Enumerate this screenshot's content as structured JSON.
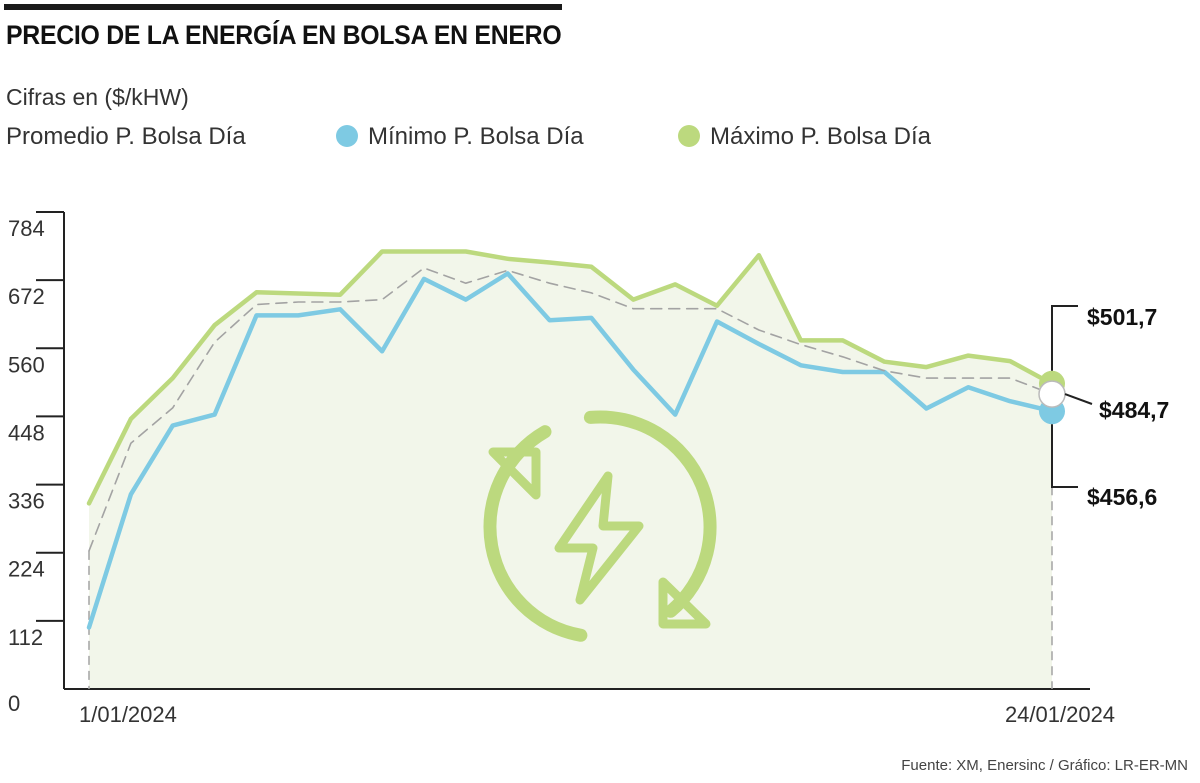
{
  "header": {
    "title": "PRECIO DE LA ENERGÍA EN BOLSA EN ENERO",
    "subtitle": "Cifras en ($/kHW)"
  },
  "legend": {
    "promedio": "Promedio P. Bolsa Día",
    "minimo": "Mínimo P. Bolsa Día",
    "maximo": "Máximo P. Bolsa Día"
  },
  "footer": {
    "source": "Fuente: XM, Enersinc / Gráfico: LR-ER-MN"
  },
  "colors": {
    "maximo": "#bcd97e",
    "minimo": "#7ecae3",
    "promedio": "#a3a3a3",
    "fill": "#f2f6ea",
    "axis": "#222222",
    "icon": "#bcd97e"
  },
  "decoration": {
    "icon": "energy-cycle-icon"
  },
  "chart_data": {
    "type": "line",
    "x_start_label": "1/01/2024",
    "x_end_label": "24/01/2024",
    "x": [
      1,
      2,
      3,
      4,
      5,
      6,
      7,
      8,
      9,
      10,
      11,
      12,
      13,
      14,
      15,
      16,
      17,
      18,
      19,
      20,
      21,
      22,
      23,
      24
    ],
    "ylim": [
      0,
      784
    ],
    "yticks": [
      0,
      112,
      224,
      336,
      448,
      560,
      672,
      784
    ],
    "series": [
      {
        "name": "Promedio P. Bolsa Día",
        "key": "promedio",
        "style": "dashed",
        "values": [
          227,
          404,
          462,
          570,
          632,
          636,
          636,
          640,
          692,
          667,
          688,
          667,
          651,
          625,
          625,
          625,
          590,
          566,
          546,
          523,
          511,
          511,
          511,
          484.7
        ]
      },
      {
        "name": "Mínimo P. Bolsa Día",
        "key": "minimo",
        "style": "solid",
        "values": [
          101,
          320,
          433,
          451,
          614,
          614,
          624,
          555,
          674,
          640,
          683,
          606,
          610,
          525,
          451,
          604,
          567,
          532,
          521,
          521,
          461,
          496,
          473,
          456.6
        ]
      },
      {
        "name": "Máximo P. Bolsa Día",
        "key": "maximo",
        "style": "solid",
        "values": [
          305,
          444,
          511,
          598,
          652,
          650,
          648,
          719,
          719,
          719,
          707,
          701,
          694,
          640,
          665,
          630,
          713,
          573,
          573,
          538,
          529,
          548,
          539,
          501.7
        ]
      }
    ],
    "end_labels": {
      "maximo": "$501,7",
      "promedio": "$484,7",
      "minimo": "$456,6"
    }
  }
}
